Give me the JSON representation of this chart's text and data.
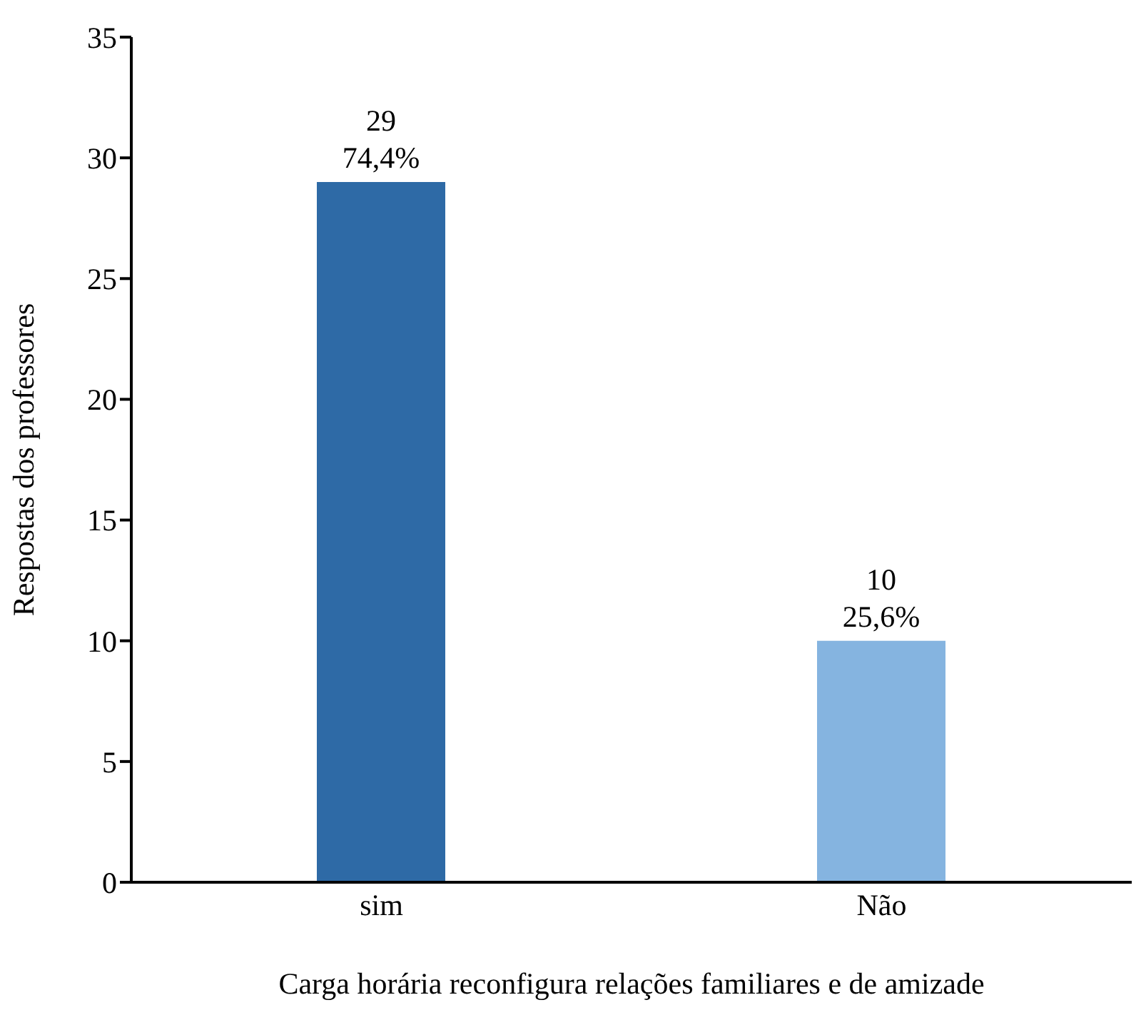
{
  "chart_data": {
    "type": "bar",
    "xlabel": "Carga horária reconfigura relações familiares e de amizade",
    "ylabel": "Respostas dos professores",
    "categories": [
      "sim",
      "Não"
    ],
    "values": [
      29,
      10
    ],
    "colors": [
      "#2e6aa6",
      "#85b4e0"
    ],
    "value_labels": [
      "29\n74,4%",
      "10\n25,6%"
    ],
    "ylim": [
      0,
      35
    ],
    "yticks": [
      0,
      5,
      10,
      15,
      20,
      25,
      30,
      35
    ],
    "grid": false,
    "legend": false
  }
}
